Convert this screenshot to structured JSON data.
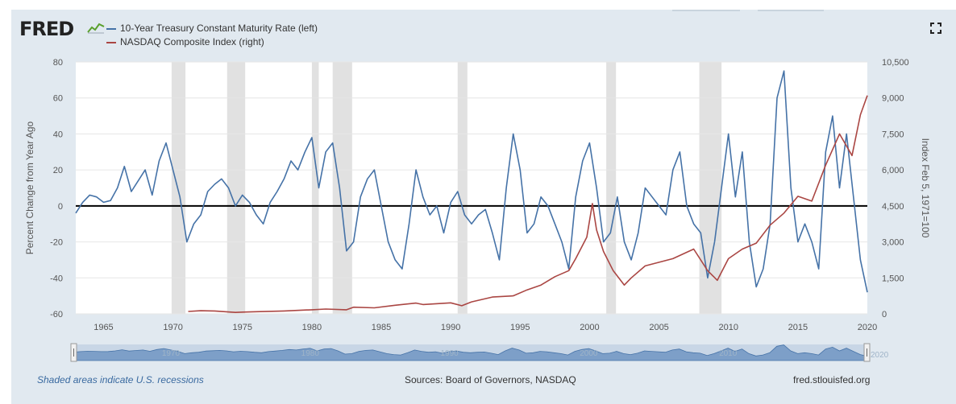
{
  "header": {
    "logo_text": "FRED",
    "logo_icon": "chart-line-icon",
    "fullscreen_icon": "fullscreen-icon"
  },
  "legend": [
    {
      "label": "10-Year Treasury Constant Maturity Rate (left)",
      "color": "#4572a7"
    },
    {
      "label": "NASDAQ Composite Index (right)",
      "color": "#aa4643"
    }
  ],
  "footer": {
    "recession_note": "Shaded areas indicate U.S. recessions",
    "sources": "Sources: Board of Governors, NASDAQ",
    "site": "fred.stlouisfed.org"
  },
  "navigator": {
    "start_label": "1970",
    "labels": [
      "1980",
      "1990",
      "2000",
      "2010"
    ],
    "end_label": "2020"
  },
  "chart_data": {
    "type": "line",
    "xlim": [
      1963,
      2020
    ],
    "x_ticks": [
      1965,
      1970,
      1975,
      1980,
      1985,
      1990,
      1995,
      2000,
      2005,
      2010,
      2015,
      2020
    ],
    "y_left": {
      "label": "Percent Change from Year Ago",
      "range": [
        -60,
        80
      ],
      "ticks": [
        -60,
        -40,
        -20,
        0,
        20,
        40,
        60,
        80
      ]
    },
    "y_right": {
      "label": "Index Feb 5, 1971=100",
      "range": [
        0,
        10500
      ],
      "ticks": [
        "0",
        "1,500",
        "3,000",
        "4,500",
        "6,000",
        "7,500",
        "9,000",
        "10,500"
      ]
    },
    "recessions": [
      [
        1969.9,
        1970.9
      ],
      [
        1973.9,
        1975.2
      ],
      [
        1980.0,
        1980.5
      ],
      [
        1981.5,
        1982.9
      ],
      [
        1990.5,
        1991.2
      ],
      [
        2001.2,
        2001.9
      ],
      [
        2007.9,
        2009.5
      ]
    ],
    "series": [
      {
        "name": "10-Year Treasury Constant Maturity Rate (left)",
        "axis": "left",
        "color": "#4572a7",
        "x": [
          1963.0,
          1963.5,
          1964.0,
          1964.5,
          1965.0,
          1965.5,
          1966.0,
          1966.5,
          1967.0,
          1967.5,
          1968.0,
          1968.5,
          1969.0,
          1969.5,
          1970.0,
          1970.5,
          1971.0,
          1971.5,
          1972.0,
          1972.5,
          1973.0,
          1973.5,
          1974.0,
          1974.5,
          1975.0,
          1975.5,
          1976.0,
          1976.5,
          1977.0,
          1977.5,
          1978.0,
          1978.5,
          1979.0,
          1979.5,
          1980.0,
          1980.5,
          1981.0,
          1981.5,
          1982.0,
          1982.5,
          1983.0,
          1983.5,
          1984.0,
          1984.5,
          1985.0,
          1985.5,
          1986.0,
          1986.5,
          1987.0,
          1987.5,
          1988.0,
          1988.5,
          1989.0,
          1989.5,
          1990.0,
          1990.5,
          1991.0,
          1991.5,
          1992.0,
          1992.5,
          1993.0,
          1993.5,
          1994.0,
          1994.5,
          1995.0,
          1995.5,
          1996.0,
          1996.5,
          1997.0,
          1997.5,
          1998.0,
          1998.5,
          1999.0,
          1999.5,
          2000.0,
          2000.5,
          2001.0,
          2001.5,
          2002.0,
          2002.5,
          2003.0,
          2003.5,
          2004.0,
          2004.5,
          2005.0,
          2005.5,
          2006.0,
          2006.5,
          2007.0,
          2007.5,
          2008.0,
          2008.5,
          2009.0,
          2009.5,
          2010.0,
          2010.5,
          2011.0,
          2011.5,
          2012.0,
          2012.5,
          2013.0,
          2013.5,
          2014.0,
          2014.5,
          2015.0,
          2015.5,
          2016.0,
          2016.5,
          2017.0,
          2017.5,
          2018.0,
          2018.5,
          2019.0,
          2019.5,
          2020.0
        ],
        "values": [
          -4,
          2,
          6,
          5,
          2,
          3,
          10,
          22,
          8,
          14,
          20,
          6,
          25,
          35,
          20,
          5,
          -20,
          -10,
          -5,
          8,
          12,
          15,
          10,
          0,
          6,
          2,
          -5,
          -10,
          2,
          8,
          15,
          25,
          20,
          30,
          38,
          10,
          30,
          35,
          10,
          -25,
          -20,
          5,
          15,
          20,
          0,
          -20,
          -30,
          -35,
          -10,
          20,
          5,
          -5,
          0,
          -15,
          2,
          8,
          -5,
          -10,
          -5,
          -2,
          -15,
          -30,
          10,
          40,
          20,
          -15,
          -10,
          5,
          0,
          -10,
          -20,
          -35,
          5,
          25,
          35,
          10,
          -20,
          -15,
          5,
          -20,
          -30,
          -15,
          10,
          5,
          0,
          -5,
          20,
          30,
          0,
          -10,
          -15,
          -40,
          -20,
          10,
          40,
          5,
          30,
          -20,
          -45,
          -35,
          -10,
          60,
          75,
          10,
          -20,
          -10,
          -20,
          -35,
          30,
          50,
          10,
          40,
          5,
          -30,
          -48
        ]
      },
      {
        "name": "NASDAQ Composite Index (right)",
        "axis": "right",
        "color": "#aa4643",
        "x": [
          1971.1,
          1972.0,
          1973.0,
          1974.5,
          1975.0,
          1976.0,
          1978.0,
          1980.0,
          1981.0,
          1982.5,
          1983.0,
          1984.5,
          1986.0,
          1987.5,
          1988.0,
          1990.0,
          1990.8,
          1991.5,
          1993.0,
          1994.5,
          1995.5,
          1996.5,
          1997.5,
          1998.5,
          1999.0,
          1999.8,
          2000.2,
          2000.5,
          2001.0,
          2001.7,
          2002.5,
          2003.0,
          2004.0,
          2005.0,
          2006.0,
          2007.5,
          2008.5,
          2009.2,
          2010.0,
          2011.0,
          2012.0,
          2013.0,
          2014.0,
          2015.0,
          2016.0,
          2017.0,
          2018.0,
          2018.9,
          2019.5,
          2020.0
        ],
        "values": [
          100,
          130,
          120,
          60,
          75,
          90,
          120,
          170,
          200,
          170,
          280,
          250,
          360,
          450,
          390,
          460,
          340,
          500,
          700,
          750,
          1000,
          1200,
          1550,
          1800,
          2300,
          3200,
          4600,
          3500,
          2600,
          1800,
          1200,
          1500,
          2000,
          2150,
          2300,
          2700,
          1800,
          1400,
          2300,
          2700,
          2950,
          3700,
          4200,
          4900,
          4700,
          6200,
          7500,
          6600,
          8300,
          9100
        ]
      }
    ]
  }
}
